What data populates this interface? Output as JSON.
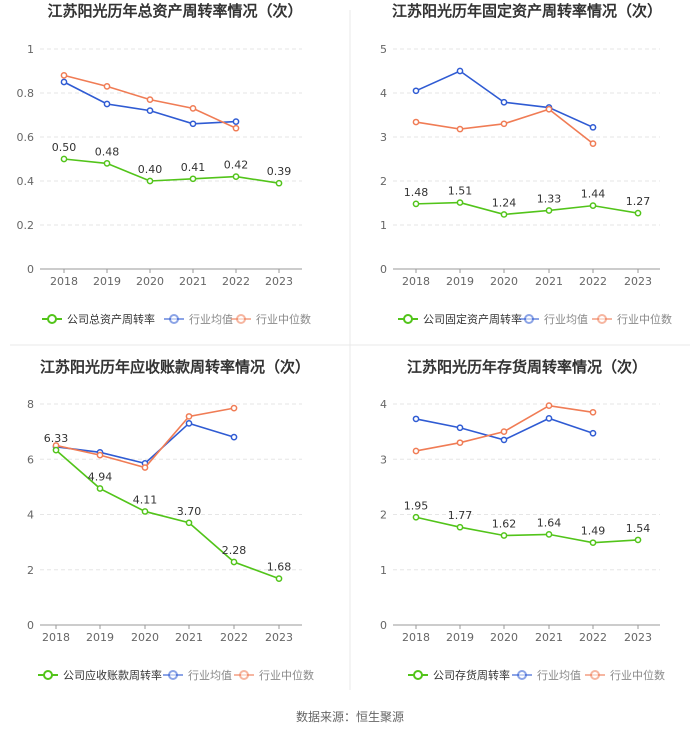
{
  "source": "数据来源：恒生聚源",
  "colors": {
    "company": "#52c41a",
    "industry_avg": "#2f5bd3",
    "industry_median": "#f07c55",
    "axis": "#999999",
    "grid": "#e6e6e6",
    "divider": "#e8e8e8"
  },
  "chart_data": [
    {
      "type": "line",
      "title": "江苏阳光历年总资产周转率情况（次）",
      "categories": [
        "2018",
        "2019",
        "2020",
        "2021",
        "2022",
        "2023"
      ],
      "ylim": [
        0,
        1
      ],
      "yticks": [
        "0",
        "0.2",
        "0.4",
        "0.6",
        "0.8",
        "1"
      ],
      "yticks_values": [
        0,
        0.2,
        0.4,
        0.6,
        0.8,
        1
      ],
      "grid": true,
      "legend_position": "bottom",
      "series": [
        {
          "name": "公司总资产周转率",
          "color_key": "company",
          "values": [
            0.5,
            0.48,
            0.4,
            0.41,
            0.42,
            0.39
          ],
          "labels": [
            "0.50",
            "0.48",
            "0.40",
            "0.41",
            "0.42",
            "0.39"
          ]
        },
        {
          "name": "行业均值",
          "color_key": "industry_avg",
          "values": [
            0.85,
            0.75,
            0.72,
            0.66,
            0.67,
            null
          ]
        },
        {
          "name": "行业中位数",
          "color_key": "industry_median",
          "values": [
            0.88,
            0.83,
            0.77,
            0.73,
            0.64,
            null
          ]
        }
      ]
    },
    {
      "type": "line",
      "title": "江苏阳光历年固定资产周转率情况（次）",
      "categories": [
        "2018",
        "2019",
        "2020",
        "2021",
        "2022",
        "2023"
      ],
      "ylim": [
        0,
        5
      ],
      "yticks": [
        "0",
        "1",
        "2",
        "3",
        "4",
        "5"
      ],
      "yticks_values": [
        0,
        1,
        2,
        3,
        4,
        5
      ],
      "grid": true,
      "legend_position": "bottom",
      "series": [
        {
          "name": "公司固定资产周转率",
          "color_key": "company",
          "values": [
            1.48,
            1.51,
            1.24,
            1.33,
            1.44,
            1.27
          ],
          "labels": [
            "1.48",
            "1.51",
            "1.24",
            "1.33",
            "1.44",
            "1.27"
          ]
        },
        {
          "name": "行业均值",
          "color_key": "industry_avg",
          "values": [
            4.05,
            4.5,
            3.79,
            3.67,
            3.22,
            null
          ]
        },
        {
          "name": "行业中位数",
          "color_key": "industry_median",
          "values": [
            3.34,
            3.18,
            3.3,
            3.63,
            2.85,
            null
          ]
        }
      ]
    },
    {
      "type": "line",
      "title": "江苏阳光历年应收账款周转率情况（次）",
      "categories": [
        "2018",
        "2019",
        "2020",
        "2021",
        "2022",
        "2023"
      ],
      "ylim": [
        0,
        8
      ],
      "yticks": [
        "0",
        "2",
        "4",
        "6",
        "8"
      ],
      "yticks_values": [
        0,
        2,
        4,
        6,
        8
      ],
      "grid": true,
      "legend_position": "bottom",
      "series": [
        {
          "name": "公司应收账款周转率",
          "color_key": "company",
          "values": [
            6.33,
            4.94,
            4.11,
            3.7,
            2.28,
            1.68
          ],
          "labels": [
            "6.33",
            "4.94",
            "4.11",
            "3.70",
            "2.28",
            "1.68"
          ]
        },
        {
          "name": "行业均值",
          "color_key": "industry_avg",
          "values": [
            6.45,
            6.25,
            5.85,
            7.3,
            6.8,
            null
          ]
        },
        {
          "name": "行业中位数",
          "color_key": "industry_median",
          "values": [
            6.5,
            6.15,
            5.7,
            7.55,
            7.85,
            null
          ]
        }
      ]
    },
    {
      "type": "line",
      "title": "江苏阳光历年存货周转率情况（次）",
      "categories": [
        "2018",
        "2019",
        "2020",
        "2021",
        "2022",
        "2023"
      ],
      "ylim": [
        0,
        4
      ],
      "yticks": [
        "0",
        "1",
        "2",
        "3",
        "4"
      ],
      "yticks_values": [
        0,
        1,
        2,
        3,
        4
      ],
      "grid": true,
      "legend_position": "bottom",
      "series": [
        {
          "name": "公司存货周转率",
          "color_key": "company",
          "values": [
            1.95,
            1.77,
            1.62,
            1.64,
            1.49,
            1.54
          ],
          "labels": [
            "1.95",
            "1.77",
            "1.62",
            "1.64",
            "1.49",
            "1.54"
          ]
        },
        {
          "name": "行业均值",
          "color_key": "industry_avg",
          "values": [
            3.73,
            3.57,
            3.35,
            3.74,
            3.47,
            null
          ]
        },
        {
          "name": "行业中位数",
          "color_key": "industry_median",
          "values": [
            3.15,
            3.3,
            3.5,
            3.97,
            3.85,
            null
          ]
        }
      ]
    }
  ]
}
